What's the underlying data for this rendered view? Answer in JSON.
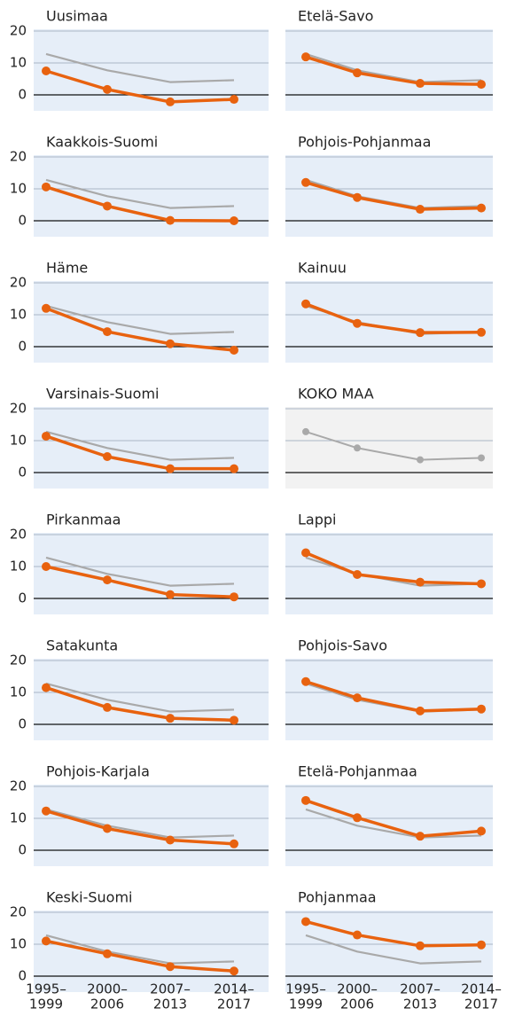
{
  "chart_data": {
    "type": "line",
    "categories": [
      [
        "1995–",
        "1999"
      ],
      [
        "2000–",
        "2006"
      ],
      [
        "2007–",
        "2013"
      ],
      [
        "2014–",
        "2017"
      ]
    ],
    "ylim": [
      -5,
      20
    ],
    "yticks": [
      0,
      10,
      20
    ],
    "highlight_color": "#e8620f",
    "reference_color": "#a9a9a9",
    "background_color": "#e6eef8",
    "reference_background_color": "#f2f2f2",
    "reference_panel": 11,
    "panels": [
      {
        "title": "Uusimaa",
        "values": [
          7.5,
          1.7,
          -2.2,
          -1.4
        ]
      },
      {
        "title": "Kaakkois-Suomi",
        "values": [
          10.6,
          4.6,
          0.1,
          0
        ]
      },
      {
        "title": "Häme",
        "values": [
          12,
          4.7,
          0.9,
          -1.1
        ]
      },
      {
        "title": "Varsinais-Suomi",
        "values": [
          11.4,
          5,
          1.2,
          1.2
        ]
      },
      {
        "title": "Pirkanmaa",
        "values": [
          10,
          5.8,
          1.2,
          0.5
        ]
      },
      {
        "title": "Satakunta",
        "values": [
          11.5,
          5.3,
          1.9,
          1.3
        ]
      },
      {
        "title": "Pohjois-Karjala",
        "values": [
          12.3,
          6.8,
          3.2,
          2
        ]
      },
      {
        "title": "Keski-Suomi",
        "values": [
          11,
          7,
          3,
          1.6
        ]
      },
      {
        "title": "Etelä-Savo",
        "values": [
          11.9,
          6.9,
          3.6,
          3.3
        ]
      },
      {
        "title": "Pohjois-Pohjanmaa",
        "values": [
          12,
          7.3,
          3.6,
          4
        ]
      },
      {
        "title": "Kainuu",
        "values": [
          13.4,
          7.3,
          4.4,
          4.5
        ]
      },
      {
        "title": "KOKO MAA",
        "values": [
          12.8,
          7.7,
          4.0,
          4.6
        ]
      },
      {
        "title": "Lappi",
        "values": [
          14.3,
          7.5,
          5.1,
          4.6
        ]
      },
      {
        "title": "Pohjois-Savo",
        "values": [
          13.4,
          8.3,
          4.2,
          4.8
        ]
      },
      {
        "title": "Etelä-Pohjanmaa",
        "values": [
          15.6,
          10.2,
          4.4,
          6
        ]
      },
      {
        "title": "Pohjanmaa",
        "values": [
          17.1,
          12.9,
          9.5,
          9.8
        ]
      }
    ]
  }
}
